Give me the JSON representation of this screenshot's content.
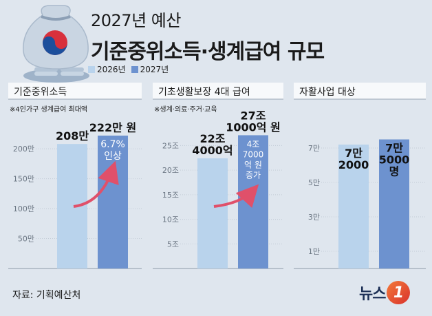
{
  "title_small": "2027년 예산",
  "title_big": "기준중위소득·생계급여 규모",
  "legend": [
    {
      "label": "2026년",
      "color": "#b9d3ec"
    },
    {
      "label": "2027년",
      "color": "#6d92cf"
    }
  ],
  "source": "자료: 기획예산처",
  "logo": {
    "text": "뉴스",
    "mark": "1"
  },
  "chart_data": [
    {
      "type": "bar",
      "header": "기준중위소득",
      "note": "※4인가구 생계급여 최대액",
      "categories": [
        "2026년",
        "2027년"
      ],
      "values": [
        208,
        222
      ],
      "unit": "만 원",
      "ylim": [
        0,
        230
      ],
      "yticks": [
        50,
        100,
        150,
        200
      ],
      "ytick_labels": [
        "50만",
        "100만",
        "150만",
        "200만"
      ],
      "value_labels": [
        [
          "208만"
        ],
        [
          "222만 원"
        ]
      ],
      "inner_labels": [
        "6.7%",
        "인상"
      ]
    },
    {
      "type": "bar",
      "header": "기초생활보장 4대 급여",
      "note": "※생계·의료·주거·교육",
      "categories": [
        "2026년",
        "2027년"
      ],
      "values": [
        22.4,
        27.1
      ],
      "unit": "조 원",
      "ylim": [
        0,
        28
      ],
      "yticks": [
        5,
        10,
        15,
        20,
        25
      ],
      "ytick_labels": [
        "5조",
        "10조",
        "15조",
        "20조",
        "25조"
      ],
      "value_labels": [
        [
          "22조",
          "4000억"
        ],
        [
          "27조",
          "1000억 원"
        ]
      ],
      "inner_labels": [
        "4조",
        "7000",
        "억 원",
        "증가"
      ]
    },
    {
      "type": "bar",
      "header": "자활사업 대상",
      "note": "",
      "categories": [
        "2026년",
        "2027년"
      ],
      "values": [
        7.2,
        7.5
      ],
      "unit": "만 명",
      "ylim": [
        0,
        8
      ],
      "yticks": [
        1,
        3,
        5,
        7
      ],
      "ytick_labels": [
        "1만",
        "3만",
        "5만",
        "7만"
      ],
      "value_labels": [
        [
          "7만",
          "2000"
        ],
        [
          "7만",
          "5000",
          "명"
        ]
      ],
      "inner_labels": []
    }
  ]
}
